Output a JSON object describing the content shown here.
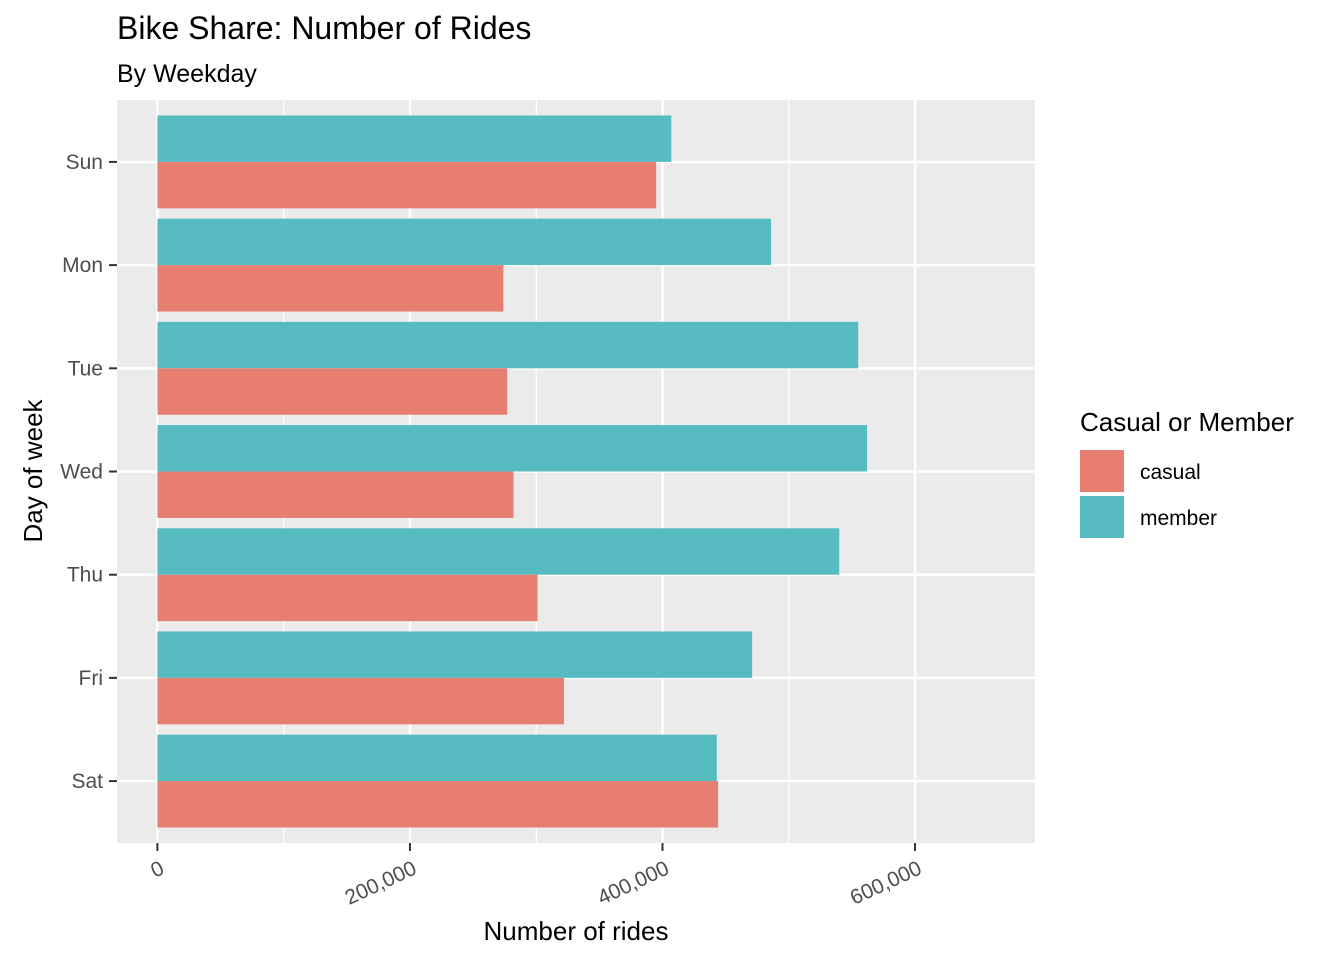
{
  "chart_data": {
    "type": "bar",
    "orientation": "horizontal",
    "title": "Bike Share: Number of Rides",
    "subtitle": "By Weekday",
    "xlabel": "Number of rides",
    "ylabel": "Day of week",
    "categories": [
      "Sun",
      "Mon",
      "Tue",
      "Wed",
      "Thu",
      "Fri",
      "Sat"
    ],
    "xlim": [
      -32000,
      695000
    ],
    "xticks": [
      0,
      200000,
      400000,
      600000
    ],
    "xtick_labels": [
      "0",
      "200,000",
      "400,000",
      "600,000"
    ],
    "grid": true,
    "legend": {
      "title": "Casual or Member",
      "position": "right"
    },
    "series": [
      {
        "name": "casual",
        "color": "#E87D72",
        "values": [
          395000,
          274000,
          277000,
          282000,
          301000,
          322000,
          444000
        ]
      },
      {
        "name": "member",
        "color": "#56BCC2",
        "values": [
          407000,
          486000,
          555000,
          562000,
          540000,
          471000,
          443000
        ]
      }
    ]
  },
  "colors": {
    "panel_background": "#EBEBEB",
    "grid_major": "#FFFFFF",
    "tick_text": "#4D4D4D",
    "tick_mark": "#333333"
  }
}
